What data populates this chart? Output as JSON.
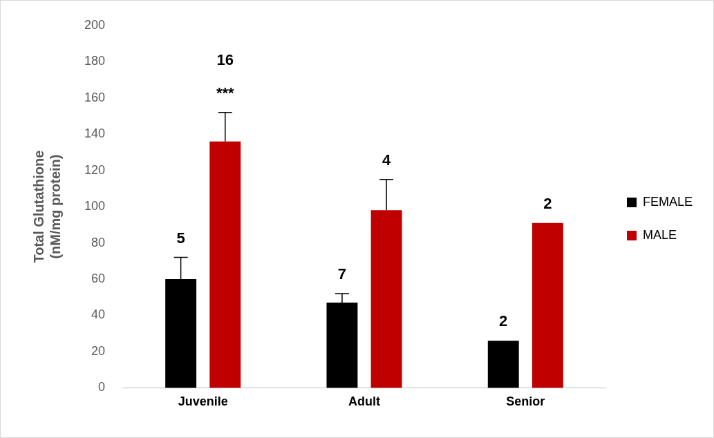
{
  "chart_data": {
    "type": "bar",
    "ylabel": "Total Glutathione\n(nM/mg protein)",
    "categories": [
      "Juvenile",
      "Adult",
      "Senior"
    ],
    "series": [
      {
        "name": "FEMALE",
        "color": "#000000",
        "values": [
          60,
          47,
          26
        ],
        "errors": [
          [
            60,
            72
          ],
          [
            47,
            52
          ],
          null
        ]
      },
      {
        "name": "MALE",
        "color": "#c00000",
        "values": [
          136,
          98,
          91
        ],
        "errors": [
          [
            136,
            152
          ],
          [
            98,
            115
          ],
          null
        ]
      }
    ],
    "annotations": [
      "5",
      "16",
      "***",
      "7",
      "4",
      "2",
      "2"
    ],
    "ylim": [
      0,
      200
    ],
    "yticks": [
      0,
      20,
      40,
      60,
      80,
      100,
      120,
      140,
      160,
      180,
      200
    ],
    "grid": false,
    "legend": "right"
  }
}
